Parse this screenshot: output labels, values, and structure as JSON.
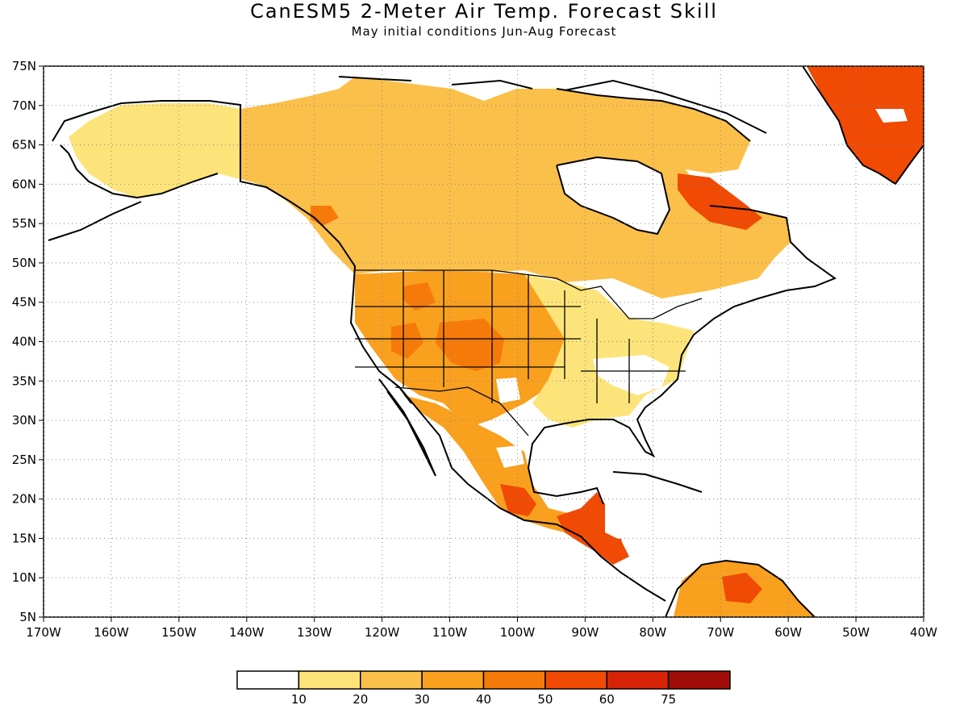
{
  "title": "CanESM5 2-Meter Air Temp. Forecast Skill",
  "subtitle": "May initial conditions  Jun-Aug Forecast",
  "lat_ticks": [
    "75N",
    "70N",
    "65N",
    "60N",
    "55N",
    "50N",
    "45N",
    "40N",
    "35N",
    "30N",
    "25N",
    "20N",
    "15N",
    "10N",
    "5N"
  ],
  "lon_ticks": [
    "170W",
    "160W",
    "150W",
    "140W",
    "130W",
    "120W",
    "110W",
    "100W",
    "90W",
    "80W",
    "70W",
    "60W",
    "50W",
    "40W"
  ],
  "map_extent": {
    "lon": [
      -170,
      -40
    ],
    "lat": [
      5,
      75
    ]
  },
  "colorbar": {
    "colors": [
      "#ffffff",
      "#fde47a",
      "#fbc04a",
      "#f9a01e",
      "#f67a0a",
      "#f04a04",
      "#d82406",
      "#a00d08"
    ],
    "labels": [
      "10",
      "20",
      "30",
      "40",
      "50",
      "60",
      "75"
    ]
  },
  "regions": [
    {
      "name": "alaska",
      "color": "#fde47a"
    },
    {
      "name": "canada",
      "color": "#fbc04a"
    },
    {
      "name": "conus_west",
      "color": "#f9a01e"
    },
    {
      "name": "conus_rockies_hot",
      "color": "#f67a0a"
    },
    {
      "name": "conus_east",
      "color": "#fde47a"
    },
    {
      "name": "mexico",
      "color": "#f9a01e"
    },
    {
      "name": "central_america",
      "color": "#f04a04"
    },
    {
      "name": "quebec_hot",
      "color": "#f04a04"
    },
    {
      "name": "greenland",
      "color": "#f04a04"
    },
    {
      "name": "south_america",
      "color": "#f9a01e"
    }
  ]
}
